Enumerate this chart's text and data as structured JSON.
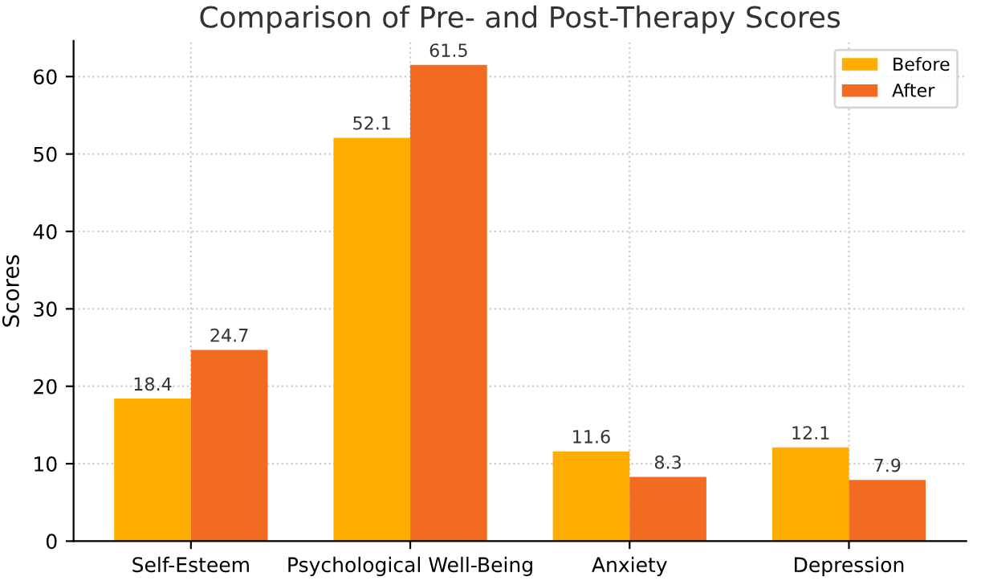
{
  "chart_data": {
    "type": "bar",
    "title": "Comparison of Pre- and Post-Therapy Scores",
    "ylabel": "Scores",
    "categories": [
      "Self-Esteem",
      "Psychological Well-Being",
      "Anxiety",
      "Depression"
    ],
    "series": [
      {
        "name": "Before",
        "color": "#ffad00",
        "values": [
          18.4,
          52.1,
          11.6,
          12.1
        ]
      },
      {
        "name": "After",
        "color": "#f26b21",
        "values": [
          24.7,
          61.5,
          8.3,
          7.9
        ]
      }
    ],
    "ylim": [
      0,
      64.6
    ],
    "yticks": [
      0,
      10,
      20,
      30,
      40,
      50,
      60
    ],
    "grid": true,
    "legend": "top right",
    "data_labels": true
  }
}
